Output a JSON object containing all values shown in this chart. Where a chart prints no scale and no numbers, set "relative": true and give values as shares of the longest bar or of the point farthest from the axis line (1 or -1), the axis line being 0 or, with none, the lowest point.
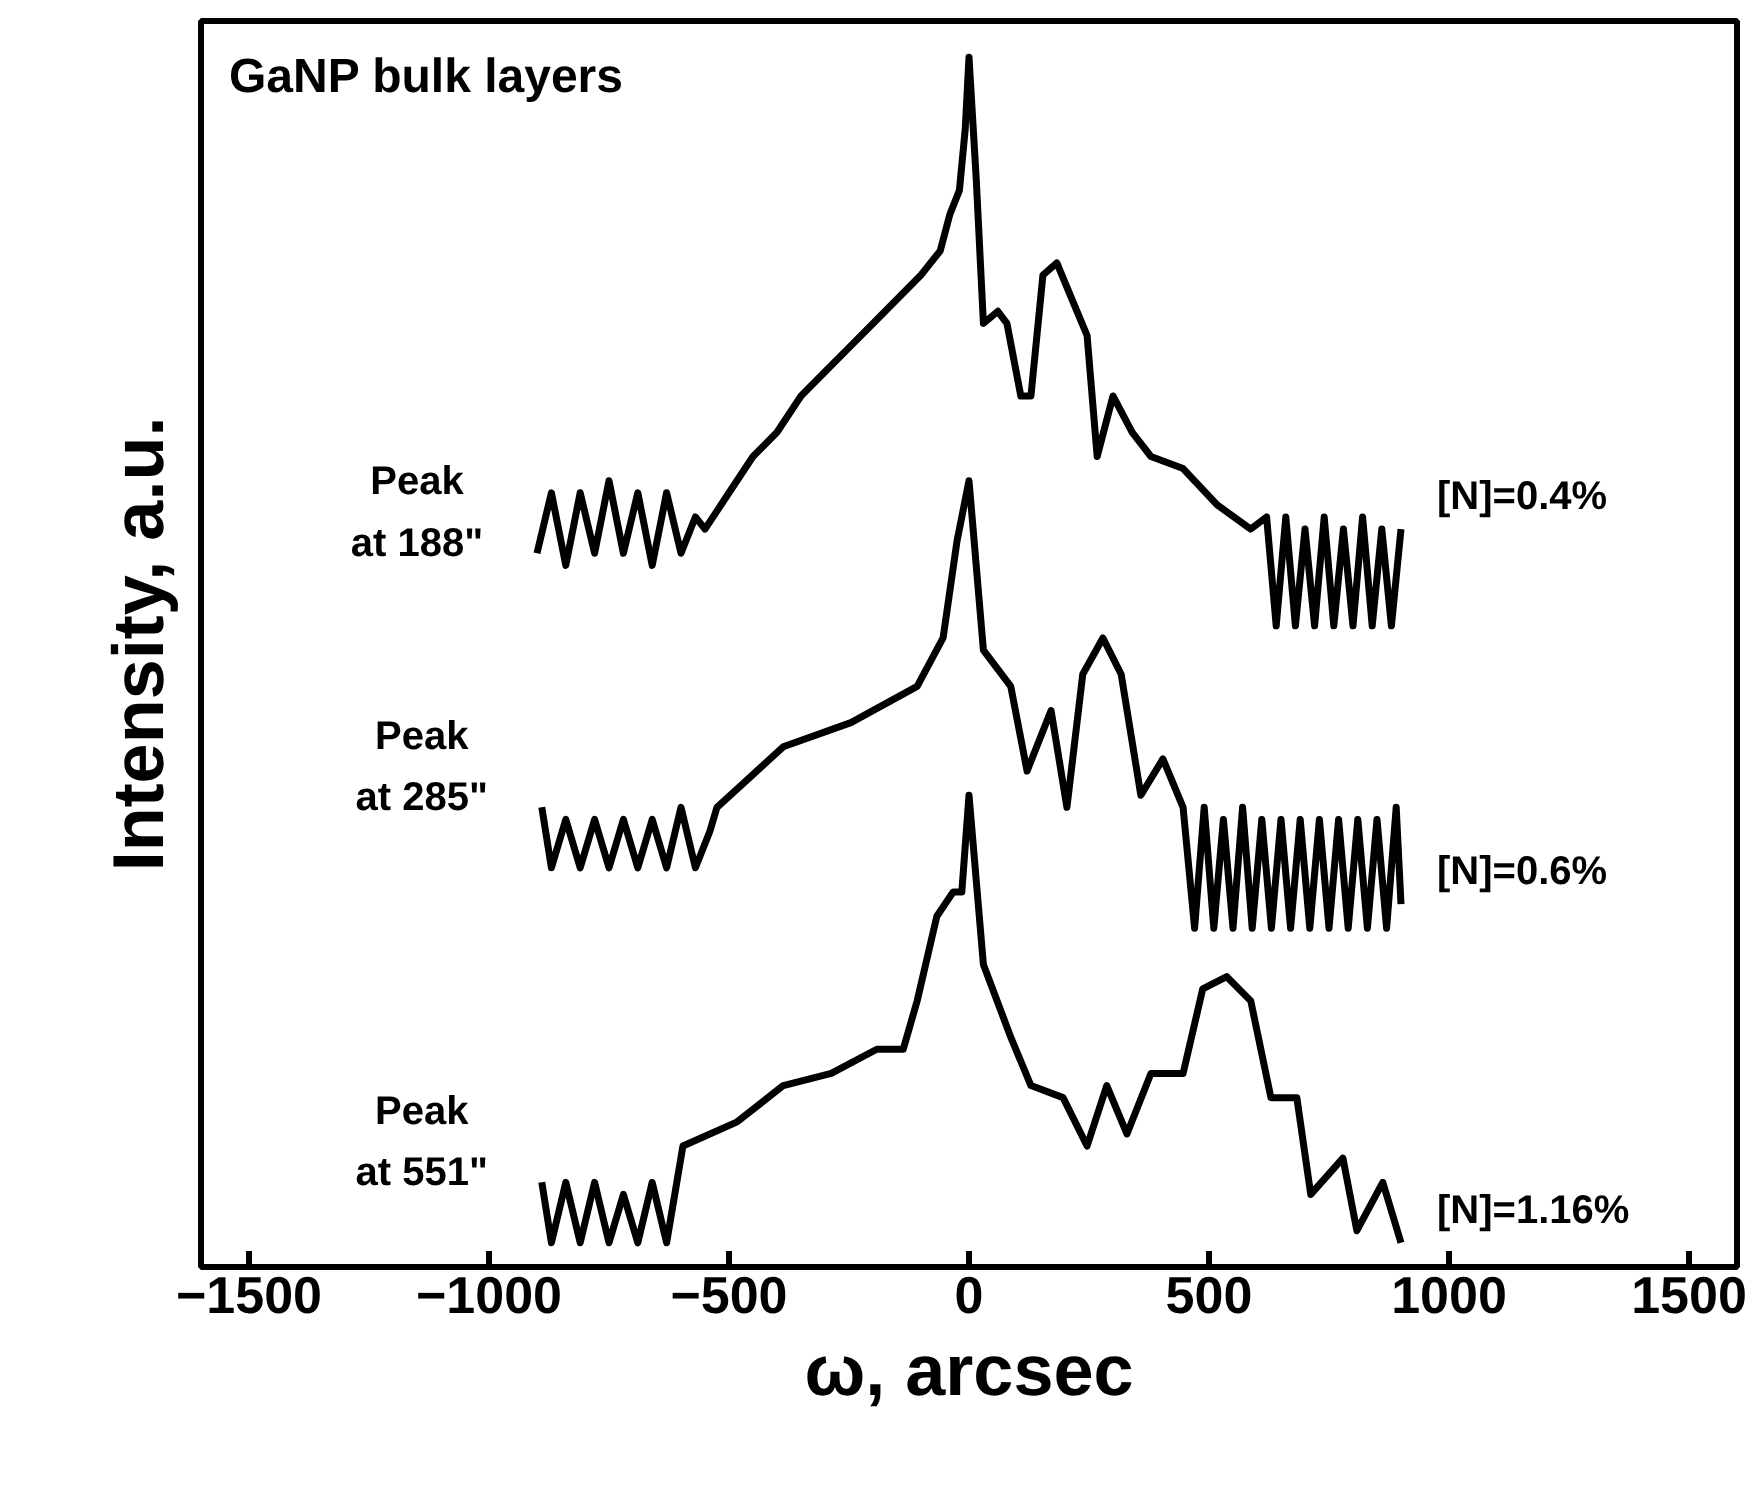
{
  "chart_data": {
    "type": "line",
    "relative": true,
    "xlabel": "ω, arcsec",
    "ylabel": "Intensity, a.u.",
    "xlim": [
      -1600,
      1600
    ],
    "xticks": [
      -1500,
      -1000,
      -500,
      0,
      500,
      1000,
      1500
    ],
    "grid": false,
    "marker": "none",
    "line_style": "solid",
    "annotations": [
      "GaNP bulk layers",
      "Peak\nat 188\"",
      "Peak\nat 285\"",
      "Peak\nat 551\""
    ],
    "series": [
      {
        "name": "[N]=0.4%",
        "color": "#000000",
        "x": [
          -900,
          -870,
          -840,
          -810,
          -780,
          -750,
          -720,
          -690,
          -660,
          -630,
          -600,
          -570,
          -550,
          -500,
          -450,
          -400,
          -350,
          -300,
          -250,
          -200,
          -150,
          -100,
          -60,
          -40,
          -20,
          -8,
          0,
          15,
          30,
          60,
          79,
          108,
          129,
          154,
          183,
          225,
          246,
          267,
          300,
          340,
          379,
          446,
          517,
          587,
          620,
          640,
          660,
          680,
          700,
          720,
          740,
          760,
          780,
          800,
          820,
          840,
          860,
          880,
          900
        ],
        "values": [
          0.59,
          0.64,
          0.58,
          0.64,
          0.59,
          0.65,
          0.59,
          0.64,
          0.58,
          0.64,
          0.59,
          0.62,
          0.61,
          0.64,
          0.67,
          0.69,
          0.72,
          0.74,
          0.76,
          0.78,
          0.8,
          0.82,
          0.84,
          0.87,
          0.89,
          0.94,
          1.0,
          0.9,
          0.78,
          0.79,
          0.78,
          0.72,
          0.72,
          0.82,
          0.83,
          0.79,
          0.77,
          0.67,
          0.72,
          0.69,
          0.67,
          0.66,
          0.63,
          0.61,
          0.62,
          0.53,
          0.62,
          0.53,
          0.61,
          0.53,
          0.62,
          0.53,
          0.61,
          0.53,
          0.62,
          0.53,
          0.61,
          0.53,
          0.61
        ]
      },
      {
        "name": "[N]=0.6%",
        "color": "#000000",
        "x": [
          -890,
          -870,
          -840,
          -810,
          -780,
          -750,
          -720,
          -690,
          -660,
          -630,
          -600,
          -570,
          -540,
          -525,
          -387,
          -246,
          -108,
          -54,
          -25,
          0,
          30,
          87,
          121,
          171,
          204,
          237,
          279,
          317,
          358,
          404,
          446,
          470,
          490,
          510,
          530,
          550,
          570,
          590,
          610,
          630,
          650,
          670,
          690,
          710,
          730,
          750,
          770,
          790,
          810,
          830,
          850,
          870,
          890,
          900
        ],
        "values": [
          0.38,
          0.33,
          0.37,
          0.33,
          0.37,
          0.33,
          0.37,
          0.33,
          0.37,
          0.33,
          0.38,
          0.33,
          0.36,
          0.38,
          0.43,
          0.45,
          0.48,
          0.52,
          0.6,
          0.65,
          0.51,
          0.48,
          0.41,
          0.46,
          0.38,
          0.49,
          0.52,
          0.49,
          0.39,
          0.42,
          0.38,
          0.28,
          0.38,
          0.28,
          0.37,
          0.28,
          0.38,
          0.28,
          0.37,
          0.28,
          0.37,
          0.28,
          0.37,
          0.28,
          0.37,
          0.28,
          0.37,
          0.28,
          0.37,
          0.28,
          0.37,
          0.28,
          0.38,
          0.3
        ]
      },
      {
        "name": "[N]=1.16%",
        "color": "#000000",
        "x": [
          -890,
          -870,
          -840,
          -810,
          -780,
          -750,
          -720,
          -690,
          -660,
          -630,
          -596,
          -483,
          -387,
          -287,
          -192,
          -137,
          -108,
          -67,
          -33,
          -15,
          0,
          30,
          87,
          129,
          196,
          246,
          287,
          329,
          379,
          446,
          487,
          537,
          587,
          629,
          683,
          712,
          779,
          808,
          862,
          900
        ],
        "values": [
          0.07,
          0.02,
          0.07,
          0.02,
          0.07,
          0.02,
          0.06,
          0.02,
          0.07,
          0.02,
          0.1,
          0.12,
          0.15,
          0.16,
          0.18,
          0.18,
          0.22,
          0.29,
          0.31,
          0.31,
          0.39,
          0.25,
          0.19,
          0.15,
          0.14,
          0.1,
          0.15,
          0.11,
          0.16,
          0.16,
          0.23,
          0.24,
          0.22,
          0.14,
          0.14,
          0.06,
          0.09,
          0.03,
          0.07,
          0.02
        ]
      }
    ]
  }
}
